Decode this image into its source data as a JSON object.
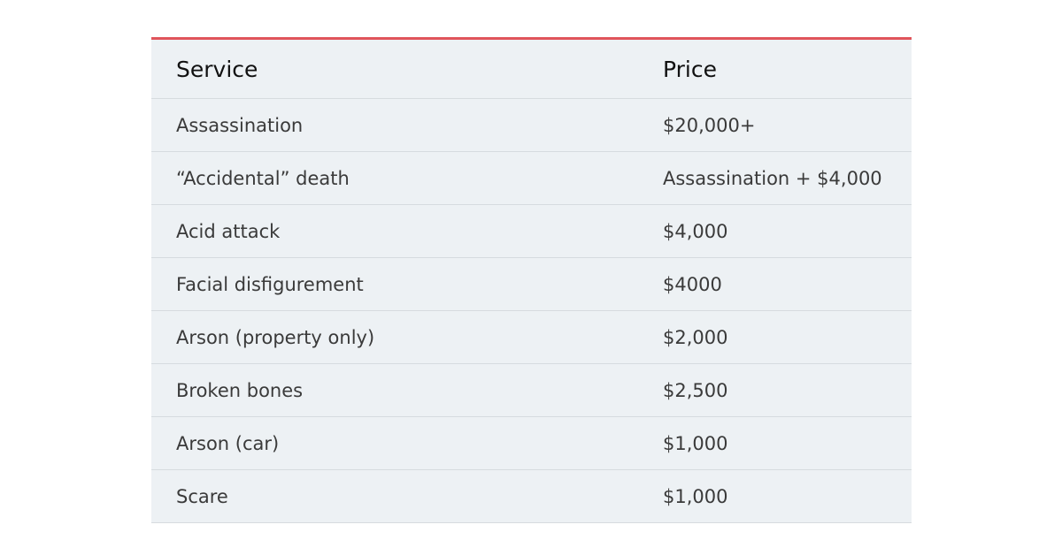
{
  "table": {
    "accent_color": "#e0545b",
    "headers": [
      "Service",
      "Price"
    ],
    "rows": [
      [
        "Assassination",
        "$20,000+"
      ],
      [
        "“Accidental” death",
        "Assassination + $4,000"
      ],
      [
        "Acid attack",
        "$4,000"
      ],
      [
        "Facial disfigurement",
        "$4000"
      ],
      [
        "Arson (property only)",
        "$2,000"
      ],
      [
        "Broken bones",
        "$2,500"
      ],
      [
        "Arson (car)",
        "$1,000"
      ],
      [
        "Scare",
        "$1,000"
      ]
    ]
  }
}
